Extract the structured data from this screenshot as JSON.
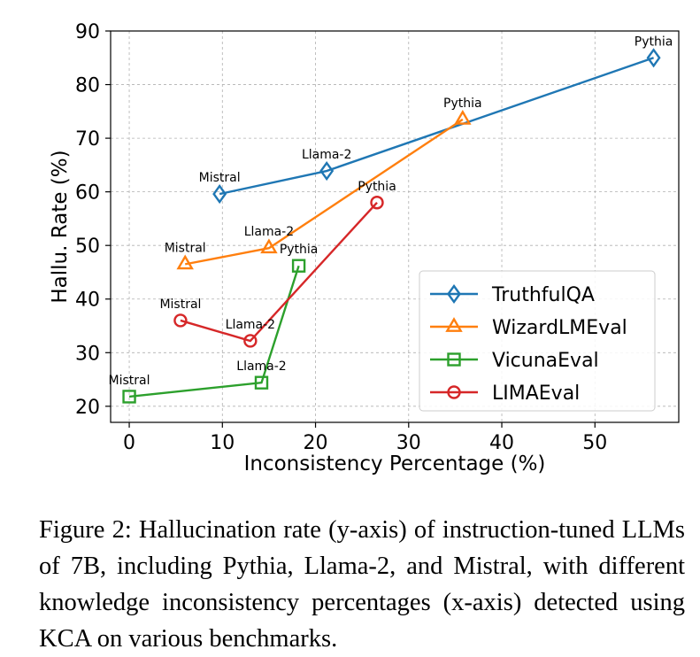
{
  "chart_data": {
    "type": "line",
    "xlabel": "Inconsistency Percentage (%)",
    "ylabel": "Hallu. Rate (%)",
    "xlim": [
      -2,
      59
    ],
    "ylim": [
      17,
      90
    ],
    "xticks": [
      0,
      10,
      20,
      30,
      40,
      50
    ],
    "yticks": [
      20,
      30,
      40,
      50,
      60,
      70,
      80,
      90
    ],
    "grid": true,
    "legend_position": "lower-right",
    "series": [
      {
        "name": "TruthfulQA",
        "color": "#1f77b4",
        "marker": "diamond",
        "points": [
          {
            "label": "Mistral",
            "x": 9.7,
            "y": 59.6
          },
          {
            "label": "Llama-2",
            "x": 21.2,
            "y": 63.9
          },
          {
            "label": "Pythia",
            "x": 56.3,
            "y": 85.0
          }
        ]
      },
      {
        "name": "WizardLMEval",
        "color": "#ff7f0e",
        "marker": "triangle",
        "points": [
          {
            "label": "Mistral",
            "x": 6.0,
            "y": 46.5
          },
          {
            "label": "Llama-2",
            "x": 15.0,
            "y": 49.5
          },
          {
            "label": "Pythia",
            "x": 35.8,
            "y": 73.5
          }
        ]
      },
      {
        "name": "VicunaEval",
        "color": "#2ca02c",
        "marker": "square",
        "points": [
          {
            "label": "Mistral",
            "x": 0.0,
            "y": 21.8
          },
          {
            "label": "Llama-2",
            "x": 14.2,
            "y": 24.4
          },
          {
            "label": "Pythia",
            "x": 18.2,
            "y": 46.2
          }
        ]
      },
      {
        "name": "LIMAEval",
        "color": "#d62728",
        "marker": "circle",
        "points": [
          {
            "label": "Mistral",
            "x": 5.5,
            "y": 36.0
          },
          {
            "label": "Llama-2",
            "x": 13.0,
            "y": 32.2
          },
          {
            "label": "Pythia",
            "x": 26.6,
            "y": 58.0
          }
        ]
      }
    ]
  },
  "caption": {
    "text": "Figure 2: Hallucination rate (y-axis) of instruction-tuned LLMs of 7B, including Pythia, Llama-2, and Mistral, with different knowledge inconsistency percentages (x-axis) detected using KCA on various benchmarks."
  }
}
